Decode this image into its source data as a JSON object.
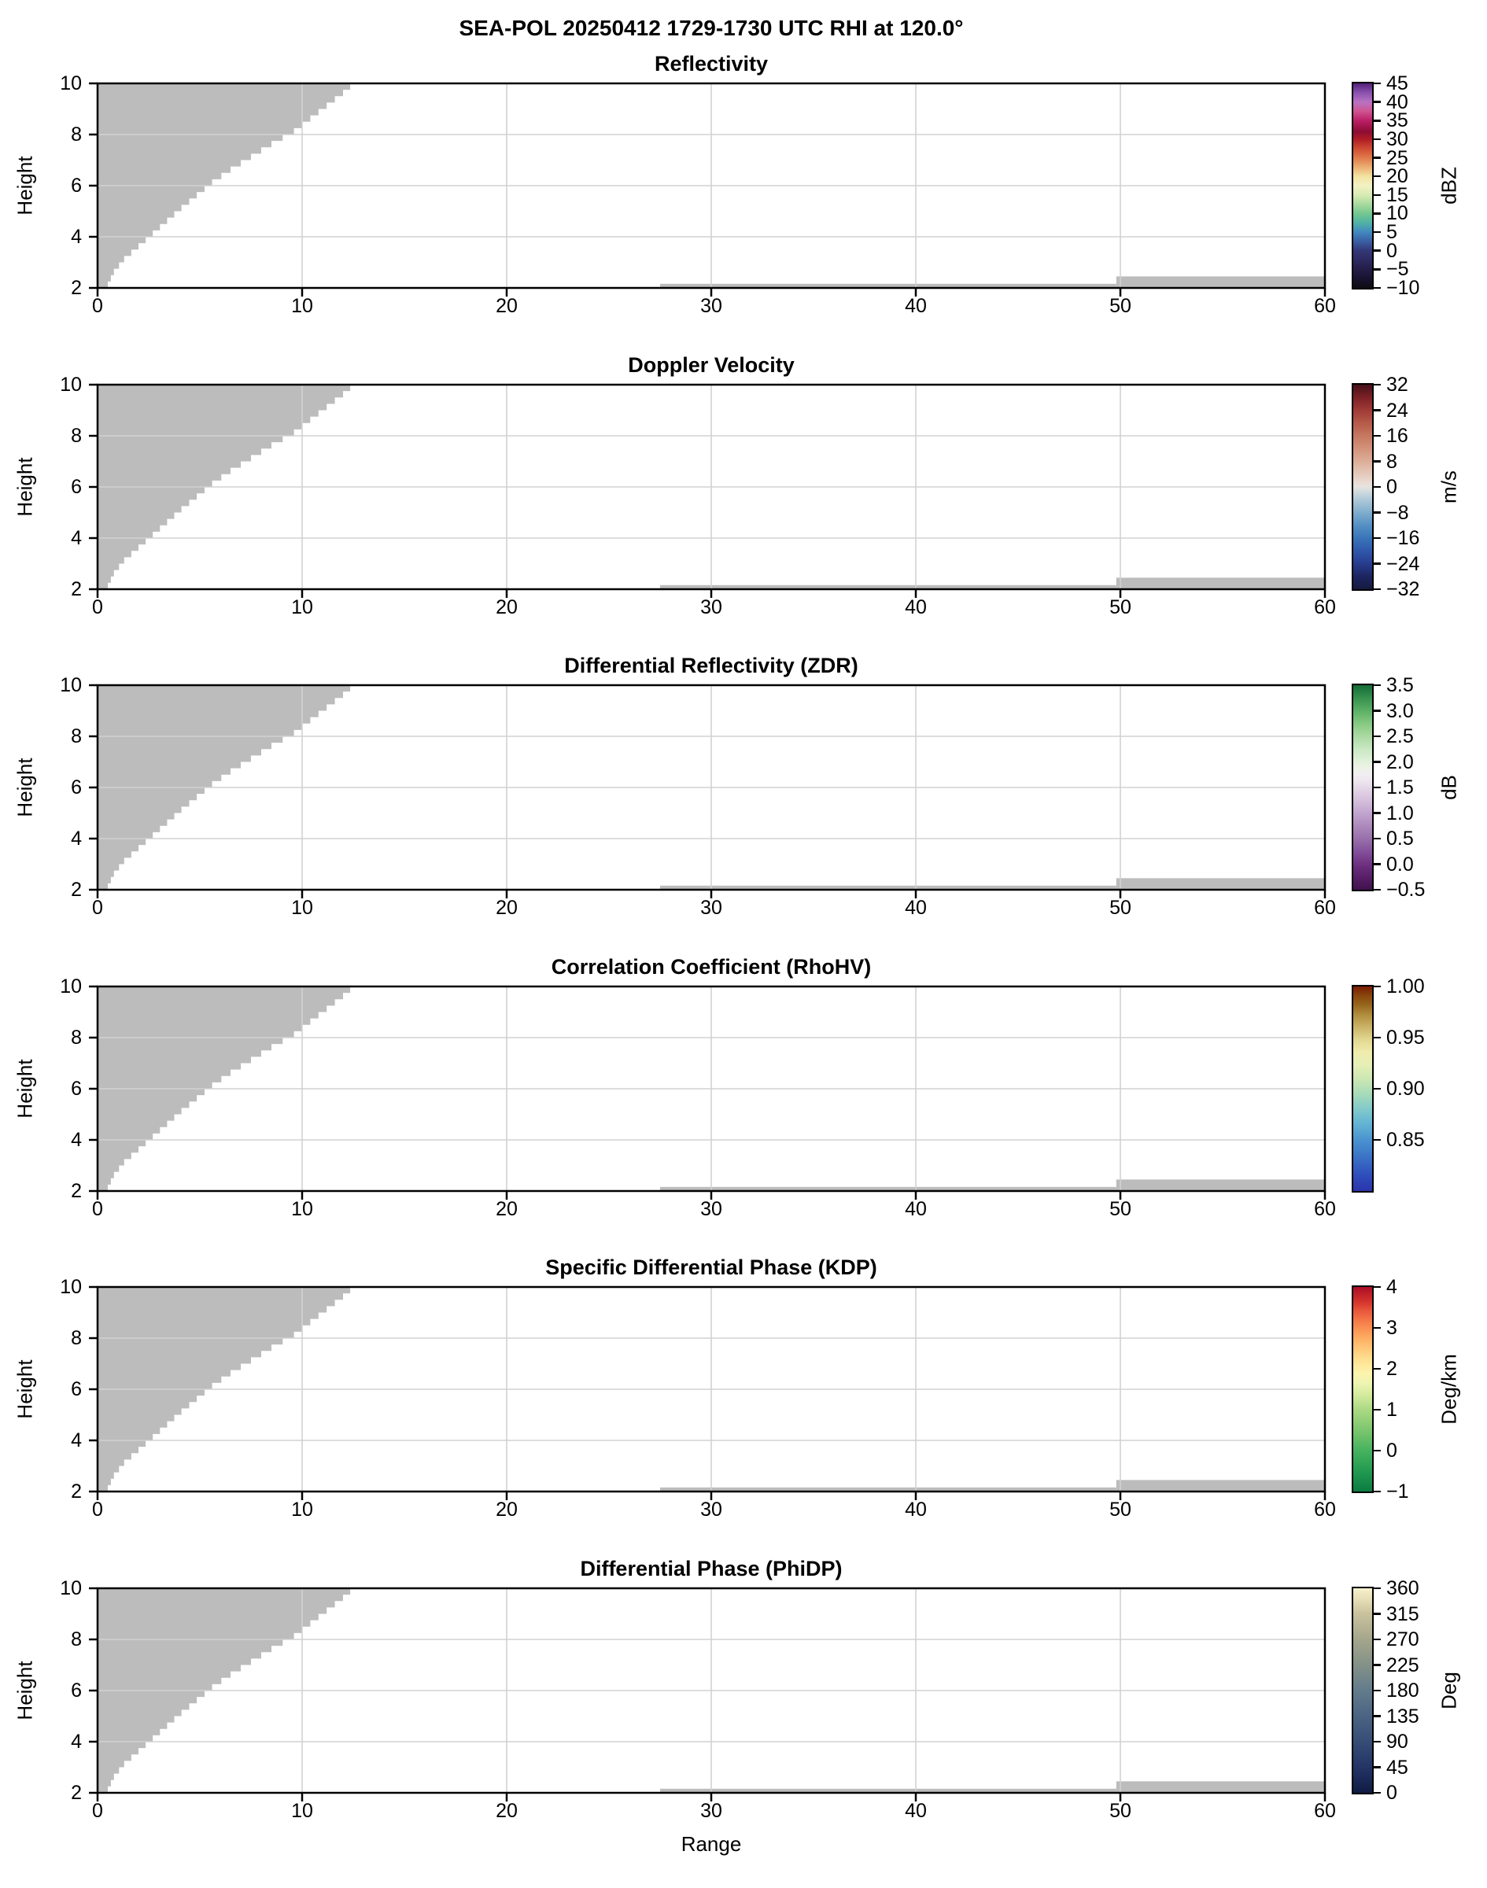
{
  "suptitle": "SEA-POL 20250412 1729-1730 UTC RHI at 120.0°",
  "axes": {
    "xlabel": "Range",
    "ylabel": "Height",
    "xlim": [
      0,
      60
    ],
    "ylim": [
      2,
      10
    ],
    "xticks": [
      {
        "v": 0,
        "label": "0"
      },
      {
        "v": 10,
        "label": "10"
      },
      {
        "v": 20,
        "label": "20"
      },
      {
        "v": 30,
        "label": "30"
      },
      {
        "v": 40,
        "label": "40"
      },
      {
        "v": 50,
        "label": "50"
      },
      {
        "v": 60,
        "label": "60"
      }
    ],
    "yticks": [
      {
        "v": 2,
        "label": "2"
      },
      {
        "v": 4,
        "label": "4"
      },
      {
        "v": 6,
        "label": "6"
      },
      {
        "v": 8,
        "label": "8"
      },
      {
        "v": 10,
        "label": "10"
      }
    ],
    "x_gridlines": [
      10,
      20,
      30,
      40,
      50
    ],
    "y_gridlines": [
      4,
      6,
      8
    ]
  },
  "style": {
    "background": "#ffffff",
    "mask_color": "#bcbcbc",
    "grid_color": "#d2d2d2",
    "spine_color": "#000000"
  },
  "chart_data": {
    "type": "heatmap",
    "subtype": "radar-RHI-multipanel",
    "note": "No precipitation echo is visible in any of the six fields; every panel shows only gray no-data mask regions (stepped wedge upper-left above the scan, thin ground-clutter strip along the bottom from range 27.5 to 60).",
    "shared_mask": {
      "wedge_boundary_h_x": [
        [
          2.0,
          0.5
        ],
        [
          2.25,
          0.65
        ],
        [
          2.5,
          0.8
        ],
        [
          2.75,
          1.05
        ],
        [
          3.0,
          1.3
        ],
        [
          3.25,
          1.65
        ],
        [
          3.5,
          2.0
        ],
        [
          3.75,
          2.35
        ],
        [
          4.0,
          2.7
        ],
        [
          4.25,
          3.05
        ],
        [
          4.5,
          3.4
        ],
        [
          4.75,
          3.75
        ],
        [
          5.0,
          4.1
        ],
        [
          5.25,
          4.48
        ],
        [
          5.5,
          4.85
        ],
        [
          5.75,
          5.23
        ],
        [
          6.0,
          5.6
        ],
        [
          6.25,
          6.05
        ],
        [
          6.5,
          6.5
        ],
        [
          6.75,
          7.0
        ],
        [
          7.0,
          7.5
        ],
        [
          7.25,
          8.0
        ],
        [
          7.5,
          8.5
        ],
        [
          7.75,
          9.05
        ],
        [
          8.0,
          9.6
        ],
        [
          8.25,
          10.0
        ],
        [
          8.5,
          10.4
        ],
        [
          8.75,
          10.8
        ],
        [
          9.0,
          11.2
        ],
        [
          9.25,
          11.6
        ],
        [
          9.5,
          12.0
        ],
        [
          9.75,
          12.35
        ],
        [
          10.0,
          12.7
        ]
      ],
      "ground_strips": [
        {
          "x0": 27.5,
          "x1": 49.8,
          "h_top": 2.16
        },
        {
          "x0": 49.8,
          "x1": 60.0,
          "h_top": 2.45
        }
      ]
    },
    "panels": [
      {
        "id": "reflectivity",
        "title": "Reflectivity",
        "colorbar": {
          "unit": "dBZ",
          "vmin": -10,
          "vmax": 45,
          "ticks": [
            {
              "v": 45,
              "label": "45"
            },
            {
              "v": 40,
              "label": "40"
            },
            {
              "v": 35,
              "label": "35"
            },
            {
              "v": 30,
              "label": "30"
            },
            {
              "v": 25,
              "label": "25"
            },
            {
              "v": 20,
              "label": "20"
            },
            {
              "v": 15,
              "label": "15"
            },
            {
              "v": 10,
              "label": "10"
            },
            {
              "v": 5,
              "label": "5"
            },
            {
              "v": 0,
              "label": "0"
            },
            {
              "v": -5,
              "label": "−5"
            },
            {
              "v": -10,
              "label": "−10"
            }
          ],
          "stops": [
            [
              0.0,
              "#0d0d12"
            ],
            [
              0.045,
              "#18122e"
            ],
            [
              0.091,
              "#231d48"
            ],
            [
              0.136,
              "#2c2a60"
            ],
            [
              0.182,
              "#343677"
            ],
            [
              0.227,
              "#3a5ea2"
            ],
            [
              0.273,
              "#4288c0"
            ],
            [
              0.318,
              "#4fb2a6"
            ],
            [
              0.364,
              "#74c78e"
            ],
            [
              0.409,
              "#a8daa0"
            ],
            [
              0.455,
              "#d8ecb4"
            ],
            [
              0.5,
              "#f2f2c4"
            ],
            [
              0.545,
              "#f3e3a2"
            ],
            [
              0.591,
              "#ecae72"
            ],
            [
              0.636,
              "#e07a4a"
            ],
            [
              0.682,
              "#cf4a33"
            ],
            [
              0.727,
              "#b01c26"
            ],
            [
              0.764,
              "#8c0d33"
            ],
            [
              0.818,
              "#bb1f67"
            ],
            [
              0.864,
              "#d05490"
            ],
            [
              0.909,
              "#b873c2"
            ],
            [
              0.955,
              "#8a51ae"
            ],
            [
              1.0,
              "#532078"
            ]
          ]
        }
      },
      {
        "id": "doppler-velocity",
        "title": "Doppler Velocity",
        "colorbar": {
          "unit": "m/s",
          "vmin": -32,
          "vmax": 32,
          "ticks": [
            {
              "v": 32,
              "label": "32"
            },
            {
              "v": 24,
              "label": "24"
            },
            {
              "v": 16,
              "label": "16"
            },
            {
              "v": 8,
              "label": "8"
            },
            {
              "v": 0,
              "label": "0"
            },
            {
              "v": -8,
              "label": "−8"
            },
            {
              "v": -16,
              "label": "−16"
            },
            {
              "v": -24,
              "label": "−24"
            },
            {
              "v": -32,
              "label": "−32"
            }
          ],
          "stops": [
            [
              0.0,
              "#141a3f"
            ],
            [
              0.063,
              "#1d2560"
            ],
            [
              0.125,
              "#273c8f"
            ],
            [
              0.188,
              "#2f58ab"
            ],
            [
              0.25,
              "#3a75b9"
            ],
            [
              0.313,
              "#5590c4"
            ],
            [
              0.375,
              "#7fadcd"
            ],
            [
              0.438,
              "#aec9d8"
            ],
            [
              0.48,
              "#d2dcdf"
            ],
            [
              0.5,
              "#e7e3e0"
            ],
            [
              0.52,
              "#eaddd5"
            ],
            [
              0.563,
              "#e5cabc"
            ],
            [
              0.625,
              "#dcae98"
            ],
            [
              0.688,
              "#d2937a"
            ],
            [
              0.75,
              "#c67860"
            ],
            [
              0.813,
              "#b55a48"
            ],
            [
              0.875,
              "#a03b36"
            ],
            [
              0.938,
              "#7c2027"
            ],
            [
              1.0,
              "#471019"
            ]
          ]
        }
      },
      {
        "id": "zdr",
        "title": "Differential Reflectivity (ZDR)",
        "colorbar": {
          "unit": "dB",
          "vmin": -0.5,
          "vmax": 3.5,
          "ticks": [
            {
              "v": 3.5,
              "label": "3.5"
            },
            {
              "v": 3.0,
              "label": "3.0"
            },
            {
              "v": 2.5,
              "label": "2.5"
            },
            {
              "v": 2.0,
              "label": "2.0"
            },
            {
              "v": 1.5,
              "label": "1.5"
            },
            {
              "v": 1.0,
              "label": "1.0"
            },
            {
              "v": 0.5,
              "label": "0.5"
            },
            {
              "v": 0.0,
              "label": "0.0"
            },
            {
              "v": -0.5,
              "label": "−0.5"
            }
          ],
          "stops": [
            [
              0.0,
              "#40114c"
            ],
            [
              0.063,
              "#581f68"
            ],
            [
              0.125,
              "#6f3181"
            ],
            [
              0.188,
              "#84519b"
            ],
            [
              0.25,
              "#9970ab"
            ],
            [
              0.313,
              "#ad8abd"
            ],
            [
              0.375,
              "#c2a5cf"
            ],
            [
              0.438,
              "#d5c0dc"
            ],
            [
              0.5,
              "#e6d8e8"
            ],
            [
              0.531,
              "#eee6ee"
            ],
            [
              0.563,
              "#f2eef2"
            ],
            [
              0.594,
              "#edf2e8"
            ],
            [
              0.625,
              "#e2f1dc"
            ],
            [
              0.688,
              "#c9e8c2"
            ],
            [
              0.75,
              "#abdaa3"
            ],
            [
              0.813,
              "#86c981"
            ],
            [
              0.875,
              "#5db066"
            ],
            [
              0.938,
              "#36914e"
            ],
            [
              1.0,
              "#146c36"
            ]
          ]
        }
      },
      {
        "id": "rhohv",
        "title": "Correlation Coefficient (RhoHV)",
        "colorbar": {
          "unit": "",
          "vmin": 0.8,
          "vmax": 1.0,
          "ticks": [
            {
              "v": 1.0,
              "label": "1.00"
            },
            {
              "v": 0.95,
              "label": "0.95"
            },
            {
              "v": 0.9,
              "label": "0.90"
            },
            {
              "v": 0.85,
              "label": "0.85"
            }
          ],
          "stops": [
            [
              0.0,
              "#2a34ac"
            ],
            [
              0.08,
              "#2f4fbc"
            ],
            [
              0.16,
              "#3a70c6"
            ],
            [
              0.25,
              "#4a93cf"
            ],
            [
              0.33,
              "#64b4d4"
            ],
            [
              0.41,
              "#86ccc9"
            ],
            [
              0.48,
              "#aadcb8"
            ],
            [
              0.55,
              "#cde8b3"
            ],
            [
              0.62,
              "#e7efb6"
            ],
            [
              0.68,
              "#efecac"
            ],
            [
              0.74,
              "#e2d791"
            ],
            [
              0.8,
              "#ccb468"
            ],
            [
              0.86,
              "#b18f3e"
            ],
            [
              0.91,
              "#97661d"
            ],
            [
              0.95,
              "#8a4a0e"
            ],
            [
              1.0,
              "#7a1f04"
            ]
          ]
        }
      },
      {
        "id": "kdp",
        "title": "Specific Differential Phase (KDP)",
        "colorbar": {
          "unit": "Deg/km",
          "vmin": -1,
          "vmax": 4,
          "ticks": [
            {
              "v": 4,
              "label": "4"
            },
            {
              "v": 3,
              "label": "3"
            },
            {
              "v": 2,
              "label": "2"
            },
            {
              "v": 1,
              "label": "1"
            },
            {
              "v": 0,
              "label": "0"
            },
            {
              "v": -1,
              "label": "−1"
            }
          ],
          "stops": [
            [
              0.0,
              "#0b7c42"
            ],
            [
              0.1,
              "#229a50"
            ],
            [
              0.2,
              "#47b25f"
            ],
            [
              0.3,
              "#7cc66e"
            ],
            [
              0.4,
              "#abd983"
            ],
            [
              0.47,
              "#d2ea9d"
            ],
            [
              0.53,
              "#eef5b2"
            ],
            [
              0.58,
              "#fdf3ad"
            ],
            [
              0.64,
              "#fee293"
            ],
            [
              0.7,
              "#fec878"
            ],
            [
              0.76,
              "#fda75e"
            ],
            [
              0.82,
              "#f8834c"
            ],
            [
              0.88,
              "#ea5a3d"
            ],
            [
              0.93,
              "#d3322c"
            ],
            [
              1.0,
              "#ab0e26"
            ]
          ]
        }
      },
      {
        "id": "phidp",
        "title": "Differential Phase (PhiDP)",
        "colorbar": {
          "unit": "Deg",
          "vmin": 0,
          "vmax": 360,
          "ticks": [
            {
              "v": 360,
              "label": "360"
            },
            {
              "v": 315,
              "label": "315"
            },
            {
              "v": 270,
              "label": "270"
            },
            {
              "v": 225,
              "label": "225"
            },
            {
              "v": 180,
              "label": "180"
            },
            {
              "v": 135,
              "label": "135"
            },
            {
              "v": 90,
              "label": "90"
            },
            {
              "v": 45,
              "label": "45"
            },
            {
              "v": 0,
              "label": "0"
            }
          ],
          "stops": [
            [
              0.0,
              "#0f1c44"
            ],
            [
              0.125,
              "#233465"
            ],
            [
              0.25,
              "#364d76"
            ],
            [
              0.375,
              "#4b6483"
            ],
            [
              0.5,
              "#637c8c"
            ],
            [
              0.625,
              "#839188"
            ],
            [
              0.75,
              "#a5a68b"
            ],
            [
              0.875,
              "#c9c29d"
            ],
            [
              0.94,
              "#e4dcb4"
            ],
            [
              1.0,
              "#f6f2cd"
            ]
          ]
        }
      }
    ]
  }
}
